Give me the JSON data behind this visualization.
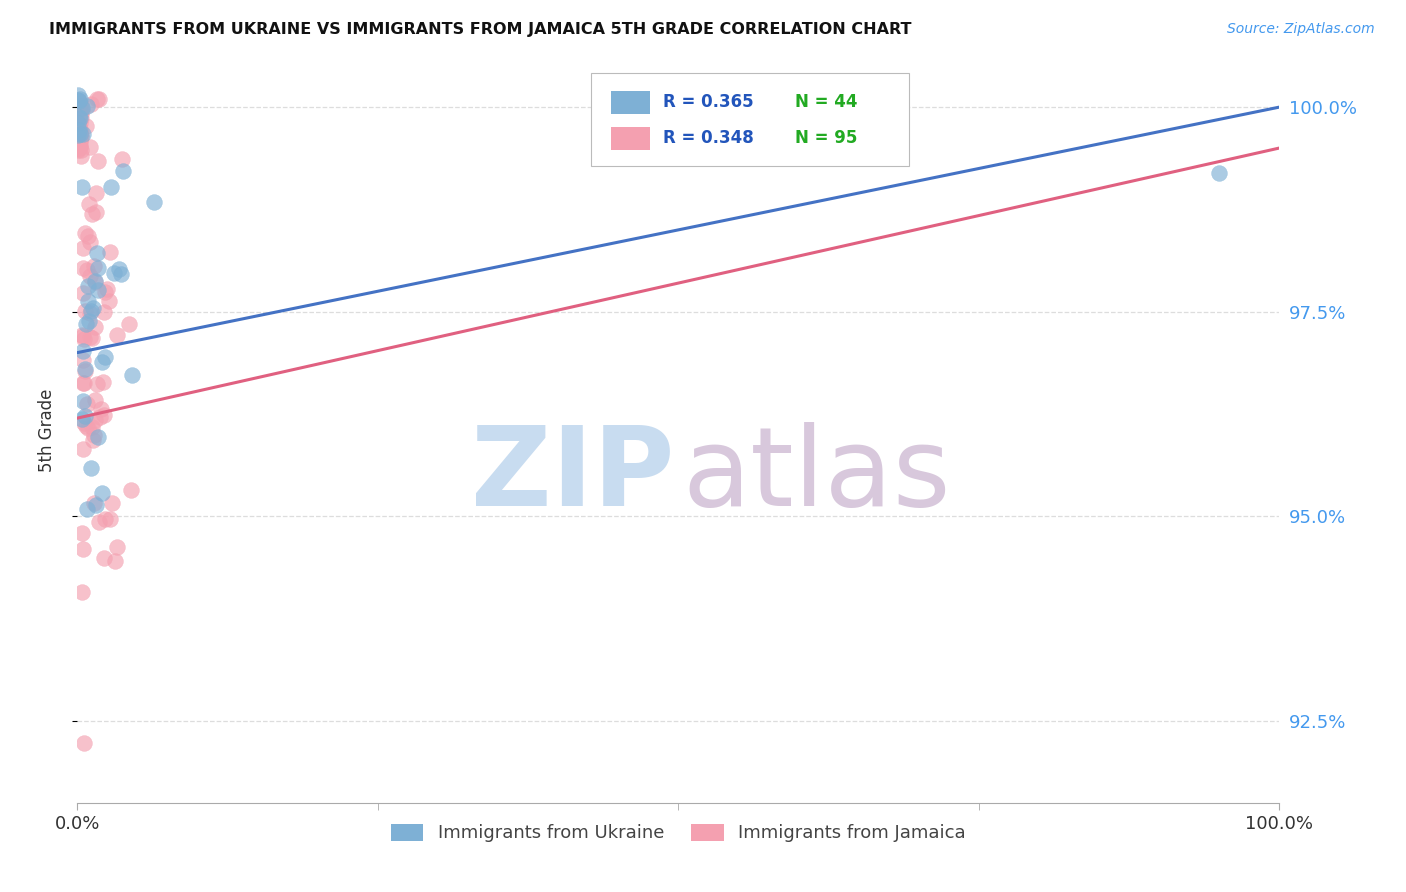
{
  "title": "IMMIGRANTS FROM UKRAINE VS IMMIGRANTS FROM JAMAICA 5TH GRADE CORRELATION CHART",
  "source": "Source: ZipAtlas.com",
  "ylabel": "5th Grade",
  "xlim": [
    0.0,
    100.0
  ],
  "ylim": [
    91.5,
    100.6
  ],
  "yticks": [
    92.5,
    95.0,
    97.5,
    100.0
  ],
  "ytick_labels": [
    "92.5%",
    "95.0%",
    "97.5%",
    "100.0%"
  ],
  "xtick_labels": [
    "0.0%",
    "100.0%"
  ],
  "ukraine_R": 0.365,
  "ukraine_N": 44,
  "jamaica_R": 0.348,
  "jamaica_N": 95,
  "ukraine_color": "#7EB0D5",
  "jamaica_color": "#F4A0B0",
  "ukraine_line_color": "#4472C4",
  "jamaica_line_color": "#E06080",
  "legend_R_color": "#2255BB",
  "legend_N_color": "#22AA22",
  "watermark_zip_color": "#C8DCF0",
  "watermark_atlas_color": "#D8C8DC",
  "grid_color": "#DDDDDD",
  "axis_color": "#AAAAAA",
  "right_tick_color": "#4499EE",
  "title_color": "#111111",
  "source_color": "#4499EE",
  "ylabel_color": "#333333",
  "bottom_label_color": "#444444",
  "xtick_color": "#333333"
}
